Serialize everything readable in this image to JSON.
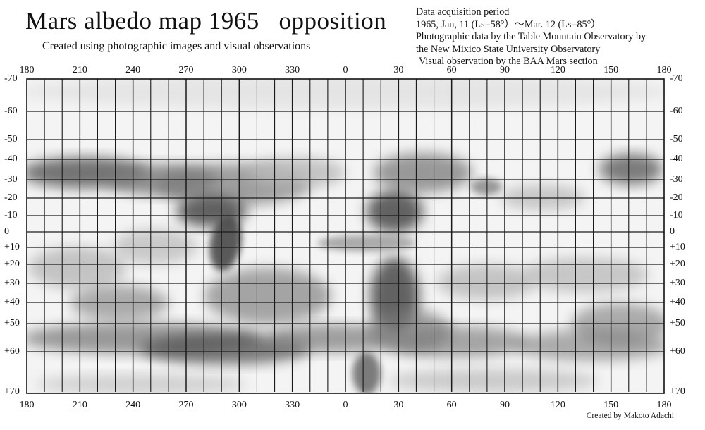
{
  "title": "Mars albedo map 1965   opposition",
  "subtitle": "Created using photographic images and visual observations",
  "info_lines": [
    "Data acquisition period",
    "1965, Jan, 11 (Ls=58°）～Mar. 12 (Ls=85°）",
    "Photographic data by the Table Mountain Observatory by",
    "the New Mixico State University Observatory",
    "Visual observation by the BAA Mars section"
  ],
  "credit": "Created by Makoto Adachi",
  "longitude_labels": [
    "180",
    "210",
    "240",
    "270",
    "300",
    "330",
    "0",
    "30",
    "60",
    "90",
    "120",
    "150",
    "180"
  ],
  "latitude_labels": [
    "-70",
    "-60",
    "-50",
    "-40",
    "-30",
    "-20",
    "-10",
    "0",
    "+10",
    "+20",
    "+30",
    "+40",
    "+50",
    "+60",
    "+70"
  ],
  "map_tone": {
    "paper": "#f4f4f4",
    "grid": "#1a1a1a",
    "shade_dark": "#4a4a4a",
    "shade_mid": "#7a7a7a",
    "shade_light": "#b8b8b8"
  }
}
